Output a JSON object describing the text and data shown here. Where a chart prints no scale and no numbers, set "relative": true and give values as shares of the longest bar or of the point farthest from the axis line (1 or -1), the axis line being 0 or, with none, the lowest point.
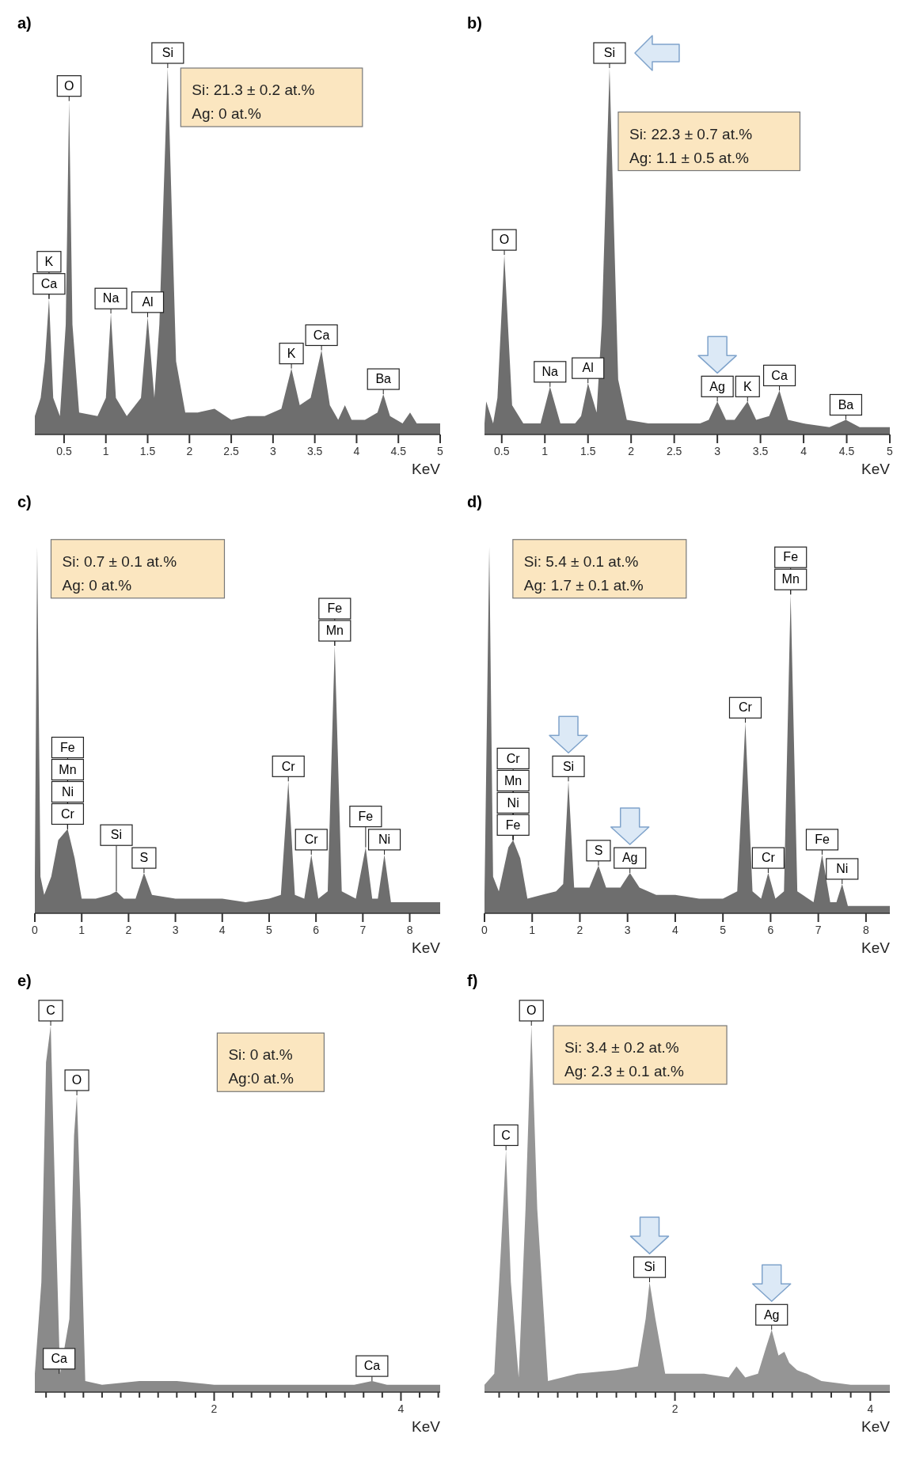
{
  "chart_data": [
    {
      "type": "area",
      "title": "a)",
      "xlabel": "KeV",
      "relative": true,
      "xlim": [
        0.15,
        5
      ],
      "xticks": [
        0.5,
        1,
        1.5,
        2,
        2.5,
        3,
        3.5,
        4,
        4.5,
        5
      ],
      "x": [
        0.15,
        0.22,
        0.27,
        0.32,
        0.37,
        0.45,
        0.52,
        0.56,
        0.6,
        0.68,
        0.9,
        1.0,
        1.06,
        1.12,
        1.25,
        1.42,
        1.5,
        1.58,
        1.64,
        1.74,
        1.84,
        1.95,
        2.1,
        2.3,
        2.5,
        2.7,
        2.9,
        3.1,
        3.22,
        3.32,
        3.45,
        3.58,
        3.68,
        3.78,
        3.86,
        3.94,
        4.1,
        4.25,
        4.32,
        4.4,
        4.55,
        4.64,
        4.72,
        4.85,
        5.0
      ],
      "series": [
        {
          "color": "#6e6e6e",
          "values": [
            0.05,
            0.1,
            0.2,
            0.37,
            0.1,
            0.05,
            0.3,
            0.91,
            0.3,
            0.06,
            0.05,
            0.1,
            0.33,
            0.1,
            0.05,
            0.1,
            0.32,
            0.1,
            0.3,
            1.0,
            0.2,
            0.06,
            0.06,
            0.07,
            0.04,
            0.05,
            0.05,
            0.07,
            0.18,
            0.08,
            0.1,
            0.23,
            0.08,
            0.04,
            0.08,
            0.04,
            0.04,
            0.06,
            0.11,
            0.05,
            0.03,
            0.06,
            0.03,
            0.03,
            0.03
          ]
        }
      ],
      "annotations": [
        "Si: 21.3 ± 0.2 at.%",
        "Ag: 0 at.%",
        {
          "text": "K",
          "x": 0.32,
          "y": 0.37
        },
        {
          "text": "Ca",
          "x": 0.32,
          "y": 0.37
        },
        {
          "text": "O",
          "x": 0.56,
          "y": 0.91
        },
        {
          "text": "Si",
          "x": 1.74,
          "y": 1.0
        },
        {
          "text": "Na",
          "x": 1.06,
          "y": 0.33
        },
        {
          "text": "Al",
          "x": 1.5,
          "y": 0.32
        },
        {
          "text": "K",
          "x": 3.22,
          "y": 0.18
        },
        {
          "text": "Ca",
          "x": 3.58,
          "y": 0.23
        },
        {
          "text": "Ba",
          "x": 4.32,
          "y": 0.11
        }
      ]
    },
    {
      "type": "area",
      "title": "b)",
      "xlabel": "KeV",
      "relative": true,
      "xlim": [
        0.3,
        5
      ],
      "xticks": [
        0.5,
        1,
        1.5,
        2,
        2.5,
        3,
        3.5,
        4,
        4.5,
        5
      ],
      "x": [
        0.3,
        0.32,
        0.4,
        0.45,
        0.53,
        0.62,
        0.75,
        0.95,
        1.06,
        1.18,
        1.35,
        1.42,
        1.5,
        1.6,
        1.66,
        1.75,
        1.85,
        1.95,
        2.2,
        2.5,
        2.8,
        2.9,
        3.0,
        3.1,
        3.2,
        3.35,
        3.45,
        3.6,
        3.72,
        3.82,
        4.0,
        4.3,
        4.49,
        4.65,
        5.0
      ],
      "series": [
        {
          "color": "#6e6e6e",
          "values": [
            0.03,
            0.09,
            0.03,
            0.1,
            0.49,
            0.08,
            0.03,
            0.03,
            0.13,
            0.03,
            0.03,
            0.05,
            0.14,
            0.06,
            0.3,
            1.0,
            0.15,
            0.04,
            0.03,
            0.03,
            0.03,
            0.04,
            0.09,
            0.04,
            0.04,
            0.09,
            0.04,
            0.05,
            0.12,
            0.04,
            0.03,
            0.02,
            0.04,
            0.02,
            0.02
          ]
        }
      ],
      "annotations": [
        "Si: 22.3 ± 0.7 at.%",
        "Ag: 1.1 ± 0.5 at.%",
        {
          "text": "O",
          "x": 0.53,
          "y": 0.49
        },
        {
          "text": "Na",
          "x": 1.06,
          "y": 0.13
        },
        {
          "text": "Al",
          "x": 1.5,
          "y": 0.14
        },
        {
          "text": "Si",
          "x": 1.75,
          "y": 1.0
        },
        {
          "text": "Ag",
          "x": 3.0,
          "y": 0.09
        },
        {
          "text": "K",
          "x": 3.35,
          "y": 0.09
        },
        {
          "text": "Ca",
          "x": 3.72,
          "y": 0.12
        },
        {
          "text": "Ba",
          "x": 4.49,
          "y": 0.04
        }
      ]
    },
    {
      "type": "area",
      "title": "c)",
      "xlabel": "KeV",
      "relative": true,
      "xlim": [
        0,
        8.65
      ],
      "xticks": [
        0,
        1,
        2,
        3,
        4,
        5,
        6,
        7,
        8
      ],
      "x": [
        0,
        0.05,
        0.12,
        0.2,
        0.35,
        0.5,
        0.7,
        0.85,
        1.0,
        1.3,
        1.6,
        1.74,
        1.9,
        2.15,
        2.33,
        2.5,
        3,
        3.5,
        4,
        4.5,
        5.0,
        5.25,
        5.41,
        5.55,
        5.75,
        5.9,
        6.05,
        6.25,
        6.4,
        6.55,
        6.85,
        7.06,
        7.2,
        7.32,
        7.46,
        7.6,
        8.0,
        8.65
      ],
      "series": [
        {
          "color": "#6e6e6e",
          "values": [
            0.1,
            1.0,
            0.1,
            0.05,
            0.1,
            0.2,
            0.23,
            0.15,
            0.04,
            0.04,
            0.05,
            0.06,
            0.04,
            0.04,
            0.11,
            0.05,
            0.04,
            0.04,
            0.04,
            0.03,
            0.04,
            0.05,
            0.36,
            0.05,
            0.04,
            0.16,
            0.04,
            0.06,
            0.73,
            0.06,
            0.04,
            0.18,
            0.04,
            0.04,
            0.16,
            0.03,
            0.03,
            0.03
          ]
        }
      ],
      "annotations": [
        "Si: 0.7 ± 0.1 at.%",
        "Ag: 0 at.%",
        {
          "text": "Fe",
          "x": 0.7,
          "y": 0.23
        },
        {
          "text": "Mn",
          "x": 0.7,
          "y": 0.23
        },
        {
          "text": "Ni",
          "x": 0.7,
          "y": 0.23
        },
        {
          "text": "Cr",
          "x": 0.7,
          "y": 0.23
        },
        {
          "text": "Si",
          "x": 1.74,
          "y": 0.06
        },
        {
          "text": "S",
          "x": 2.33,
          "y": 0.11
        },
        {
          "text": "Cr",
          "x": 5.41,
          "y": 0.36
        },
        {
          "text": "Cr",
          "x": 5.9,
          "y": 0.16
        },
        {
          "text": "Fe",
          "x": 6.4,
          "y": 0.73
        },
        {
          "text": "Mn",
          "x": 6.4,
          "y": 0.73
        },
        {
          "text": "Fe",
          "x": 7.06,
          "y": 0.18
        },
        {
          "text": "Ni",
          "x": 7.46,
          "y": 0.16
        }
      ]
    },
    {
      "type": "area",
      "title": "d)",
      "xlabel": "KeV",
      "relative": true,
      "xlim": [
        0,
        8.5
      ],
      "xticks": [
        0,
        1,
        2,
        3,
        4,
        5,
        6,
        7,
        8
      ],
      "x": [
        0,
        0.1,
        0.18,
        0.3,
        0.5,
        0.6,
        0.75,
        0.9,
        1.2,
        1.5,
        1.65,
        1.76,
        1.88,
        2.2,
        2.39,
        2.55,
        2.85,
        3.05,
        3.25,
        3.6,
        4.0,
        4.5,
        5.0,
        5.3,
        5.47,
        5.62,
        5.8,
        5.95,
        6.1,
        6.28,
        6.42,
        6.56,
        6.9,
        7.08,
        7.25,
        7.38,
        7.5,
        7.62,
        8.0,
        8.5
      ],
      "series": [
        {
          "color": "#6e6e6e",
          "values": [
            0.05,
            1.0,
            0.1,
            0.06,
            0.18,
            0.2,
            0.15,
            0.04,
            0.05,
            0.06,
            0.08,
            0.36,
            0.07,
            0.07,
            0.13,
            0.07,
            0.07,
            0.11,
            0.07,
            0.05,
            0.05,
            0.04,
            0.04,
            0.06,
            0.52,
            0.06,
            0.04,
            0.11,
            0.04,
            0.06,
            0.87,
            0.06,
            0.03,
            0.16,
            0.03,
            0.03,
            0.08,
            0.02,
            0.02,
            0.02
          ]
        }
      ],
      "annotations": [
        "Si: 5.4 ± 0.1 at.%",
        "Ag: 1.7 ± 0.1 at.%",
        {
          "text": "Cr",
          "x": 0.6,
          "y": 0.2
        },
        {
          "text": "Mn",
          "x": 0.6,
          "y": 0.2
        },
        {
          "text": "Ni",
          "x": 0.6,
          "y": 0.2
        },
        {
          "text": "Fe",
          "x": 0.6,
          "y": 0.2
        },
        {
          "text": "Si",
          "x": 1.76,
          "y": 0.36
        },
        {
          "text": "S",
          "x": 2.39,
          "y": 0.13
        },
        {
          "text": "Ag",
          "x": 3.05,
          "y": 0.11
        },
        {
          "text": "Cr",
          "x": 5.47,
          "y": 0.52
        },
        {
          "text": "Cr",
          "x": 5.95,
          "y": 0.11
        },
        {
          "text": "Fe",
          "x": 6.42,
          "y": 0.87
        },
        {
          "text": "Mn",
          "x": 6.42,
          "y": 0.87
        },
        {
          "text": "Fe",
          "x": 7.08,
          "y": 0.16
        },
        {
          "text": "Ni",
          "x": 7.5,
          "y": 0.08
        }
      ]
    },
    {
      "type": "area",
      "title": "e)",
      "xlabel": "KeV",
      "relative": true,
      "xlim": [
        0.08,
        4.42
      ],
      "xticks": [
        {
          "value": 0.2,
          "label": null
        },
        {
          "value": 0.4,
          "label": null
        },
        {
          "value": 0.6,
          "label": null
        },
        {
          "value": 0.8,
          "label": null
        },
        {
          "value": 1,
          "label": null
        },
        {
          "value": 1.2,
          "label": null
        },
        {
          "value": 1.4,
          "label": null
        },
        {
          "value": 1.6,
          "label": null
        },
        {
          "value": 1.8,
          "label": null
        },
        2,
        {
          "value": 2.2,
          "label": null
        },
        {
          "value": 2.4,
          "label": null
        },
        {
          "value": 2.6,
          "label": null
        },
        {
          "value": 2.8,
          "label": null
        },
        {
          "value": 3,
          "label": null
        },
        {
          "value": 3.2,
          "label": null
        },
        {
          "value": 3.4,
          "label": null
        },
        {
          "value": 3.6,
          "label": null
        },
        {
          "value": 3.8,
          "label": null
        },
        4,
        {
          "value": 4.2,
          "label": null
        },
        {
          "value": 4.4,
          "label": null
        }
      ],
      "x": [
        0.08,
        0.15,
        0.2,
        0.25,
        0.3,
        0.35,
        0.45,
        0.5,
        0.53,
        0.57,
        0.62,
        0.8,
        1.2,
        1.6,
        2.0,
        2.5,
        3.0,
        3.5,
        3.69,
        3.85,
        4.42
      ],
      "series": [
        {
          "color": "#8a8a8a",
          "values": [
            0.05,
            0.3,
            0.9,
            1.0,
            0.5,
            0.05,
            0.2,
            0.7,
            0.81,
            0.5,
            0.03,
            0.02,
            0.03,
            0.03,
            0.02,
            0.02,
            0.02,
            0.02,
            0.03,
            0.02,
            0.02
          ]
        }
      ],
      "annotations": [
        "Si: 0 at.%",
        "Ag:0 at.%",
        {
          "text": "C",
          "x": 0.25,
          "y": 1.0
        },
        {
          "text": "O",
          "x": 0.53,
          "y": 0.81
        },
        {
          "text": "Ca",
          "x": 0.34,
          "y": 0.05
        },
        {
          "text": "Ca",
          "x": 3.69,
          "y": 0.03
        }
      ]
    },
    {
      "type": "area",
      "title": "f)",
      "xlabel": "KeV",
      "relative": true,
      "xlim": [
        0.05,
        4.2
      ],
      "xticks": [
        {
          "value": 0.2,
          "label": null
        },
        {
          "value": 0.4,
          "label": null
        },
        {
          "value": 0.6,
          "label": null
        },
        {
          "value": 0.8,
          "label": null
        },
        {
          "value": 1,
          "label": null
        },
        {
          "value": 1.2,
          "label": null
        },
        {
          "value": 1.4,
          "label": null
        },
        {
          "value": 1.6,
          "label": null
        },
        {
          "value": 1.8,
          "label": null
        },
        2,
        {
          "value": 2.2,
          "label": null
        },
        {
          "value": 2.4,
          "label": null
        },
        {
          "value": 2.6,
          "label": null
        },
        {
          "value": 2.8,
          "label": null
        },
        {
          "value": 3,
          "label": null
        },
        {
          "value": 3.2,
          "label": null
        },
        {
          "value": 3.4,
          "label": null
        },
        {
          "value": 3.6,
          "label": null
        },
        {
          "value": 3.8,
          "label": null
        },
        4
      ],
      "x": [
        0.05,
        0.15,
        0.22,
        0.27,
        0.32,
        0.4,
        0.47,
        0.53,
        0.59,
        0.7,
        1.0,
        1.4,
        1.62,
        1.7,
        1.74,
        1.8,
        1.9,
        2.3,
        2.55,
        2.63,
        2.72,
        2.85,
        2.93,
        2.99,
        3.06,
        3.12,
        3.17,
        3.25,
        3.35,
        3.5,
        3.8,
        4.2
      ],
      "series": [
        {
          "color": "#959595",
          "values": [
            0.02,
            0.05,
            0.4,
            0.66,
            0.3,
            0.04,
            0.5,
            1.0,
            0.5,
            0.03,
            0.05,
            0.06,
            0.07,
            0.2,
            0.3,
            0.2,
            0.05,
            0.05,
            0.04,
            0.07,
            0.04,
            0.05,
            0.12,
            0.17,
            0.1,
            0.11,
            0.08,
            0.06,
            0.05,
            0.03,
            0.02,
            0.02
          ]
        }
      ],
      "annotations": [
        "Si: 3.4 ± 0.2 at.%",
        "Ag: 2.3 ± 0.1 at.%",
        {
          "text": "C",
          "x": 0.27,
          "y": 0.66
        },
        {
          "text": "O",
          "x": 0.53,
          "y": 1.0
        },
        {
          "text": "Si",
          "x": 1.74,
          "y": 0.3
        },
        {
          "text": "Ag",
          "x": 2.99,
          "y": 0.17
        }
      ]
    }
  ]
}
